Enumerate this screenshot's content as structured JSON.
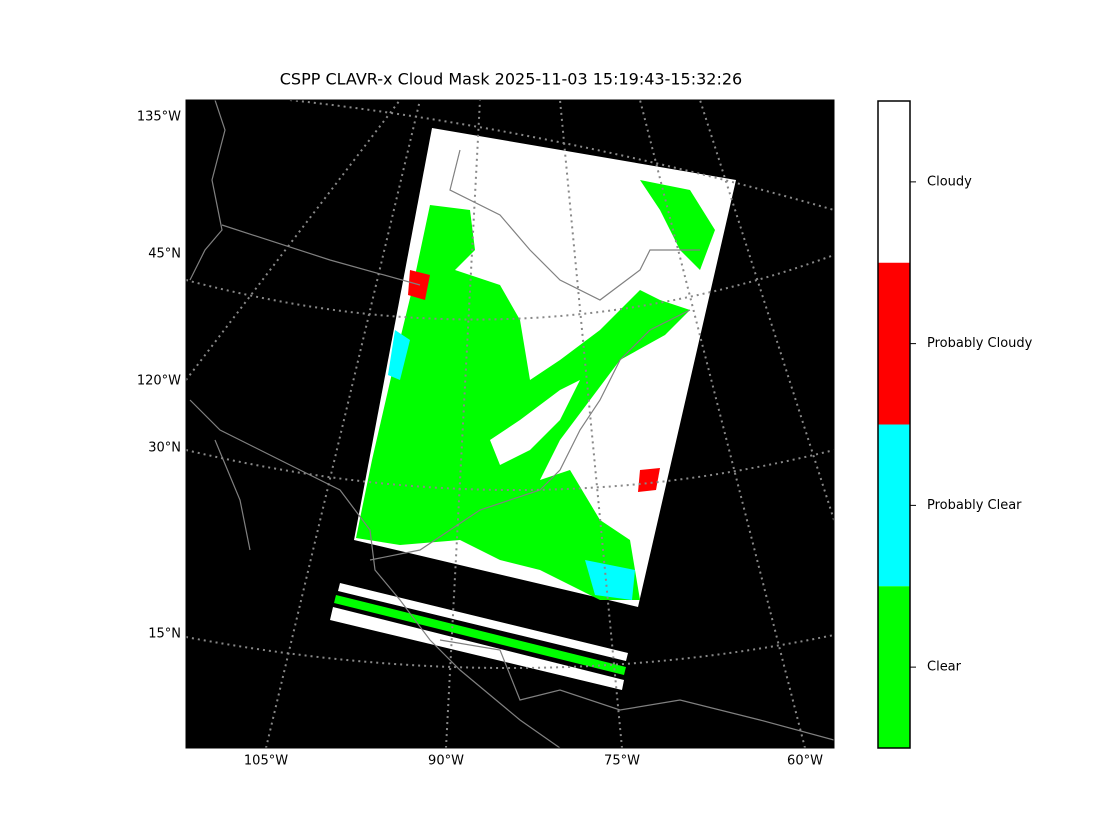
{
  "title": "CSPP CLAVR-x Cloud Mask 2025-11-03 15:19:43-15:32:26",
  "map": {
    "left_labels": [
      "135°W",
      "45°N",
      "120°W",
      "30°N",
      "15°N"
    ],
    "bottom_labels": [
      "105°W",
      "90°W",
      "75°W",
      "60°W"
    ]
  },
  "colorbar": {
    "classes": [
      {
        "name": "Cloudy",
        "color": "#ffffff"
      },
      {
        "name": "Probably Cloudy",
        "color": "#ff0000"
      },
      {
        "name": "Probably Clear",
        "color": "#00ffff"
      },
      {
        "name": "Clear",
        "color": "#00ff00"
      }
    ]
  }
}
